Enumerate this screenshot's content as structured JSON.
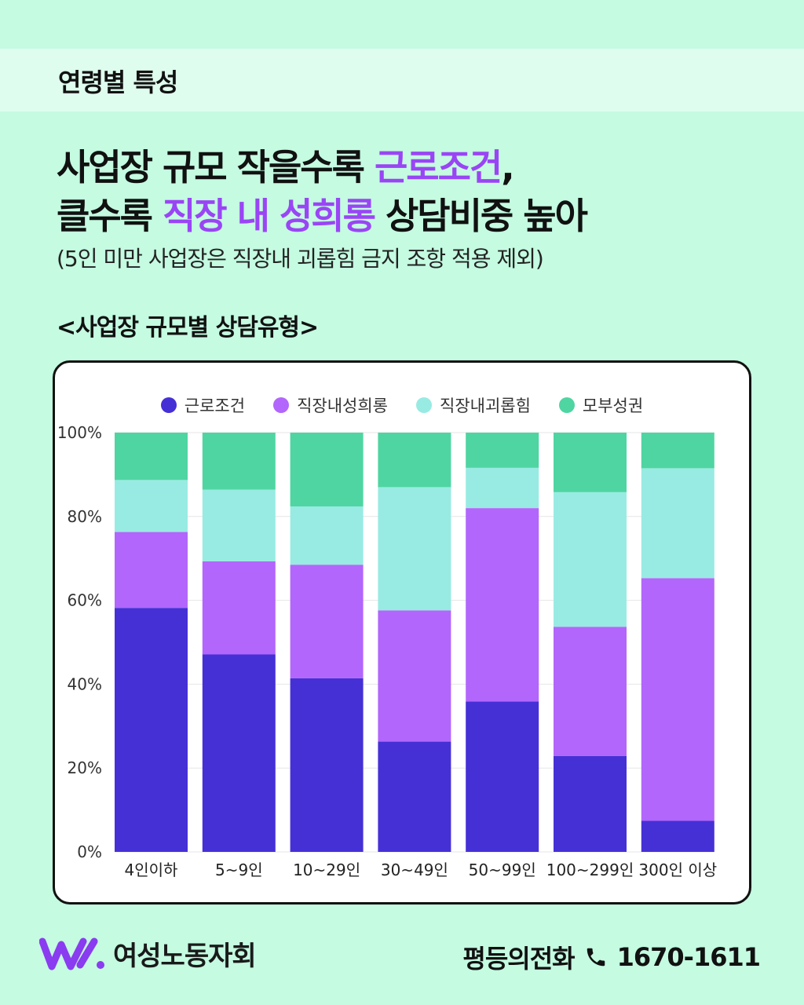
{
  "section": {
    "label": "연령별 특성"
  },
  "headline": {
    "line1_a": "사업장 규모 작을수록 ",
    "line1_highlight": "근로조건",
    "line1_b": ",",
    "line2_a": "클수록 ",
    "line2_highlight": "직장 내 성희롱",
    "line2_b": " 상담비중 높아"
  },
  "subnote": "(5인 미만 사업장은 직장내 괴롭힘 금지 조항 적용 제외)",
  "chart_heading": "<사업장 규모별 상담유형>",
  "chart_data": {
    "type": "bar",
    "stacked": true,
    "categories": [
      "4인이하",
      "5~9인",
      "10~29인",
      "30~49인",
      "50~99인",
      "100~299인",
      "300인 이상"
    ],
    "series": [
      {
        "name": "근로조건",
        "color": "#4530d6",
        "values": [
          58.2,
          47.1,
          41.4,
          26.3,
          35.9,
          22.9,
          7.4
        ]
      },
      {
        "name": "직장내성희롱",
        "color": "#b266fb",
        "values": [
          18.1,
          22.2,
          27.1,
          31.3,
          46.1,
          30.8,
          57.9
        ]
      },
      {
        "name": "직장내괴롭힘",
        "color": "#98ebe2",
        "values": [
          12.4,
          17.1,
          13.9,
          29.4,
          9.6,
          32.1,
          26.2
        ]
      },
      {
        "name": "모부성권",
        "color": "#4fd5a2",
        "values": [
          11.3,
          13.6,
          17.6,
          13.0,
          8.4,
          14.2,
          8.5
        ]
      }
    ],
    "yticks": [
      "0%",
      "20%",
      "40%",
      "60%",
      "80%",
      "100%"
    ],
    "ylim": [
      0,
      100
    ],
    "grid": true,
    "legend": "top-center"
  },
  "footer": {
    "org_name": "여성노동자회",
    "hotline_label": "평등의전화",
    "phone_number": "1670-1611",
    "logo_icon": "wave-logo-icon",
    "phone_icon": "phone-icon",
    "logo_color": "#8a3cf0"
  }
}
